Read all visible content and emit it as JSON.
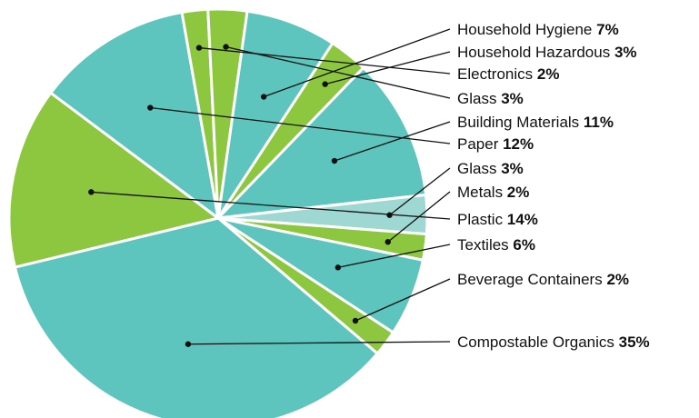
{
  "chart_data": {
    "type": "pie",
    "title": "",
    "legend": "none",
    "slices": [
      {
        "label": "Household Hygiene",
        "value": 7,
        "pct_label": "7%",
        "color": "#5ec4be"
      },
      {
        "label": "Household Hazardous",
        "value": 3,
        "pct_label": "3%",
        "color": "#8dc63f"
      },
      {
        "label": "Building Materials",
        "value": 11,
        "pct_label": "11%",
        "color": "#5ec4be"
      },
      {
        "label": "Glass",
        "value": 3,
        "pct_label": "3%",
        "color": "#9fd8d3"
      },
      {
        "label": "Metals",
        "value": 2,
        "pct_label": "2%",
        "color": "#8dc63f"
      },
      {
        "label": "Textiles",
        "value": 6,
        "pct_label": "6%",
        "color": "#5ec4be"
      },
      {
        "label": "Beverage Containers",
        "value": 2,
        "pct_label": "2%",
        "color": "#8dc63f"
      },
      {
        "label": "Compostable Organics",
        "value": 35,
        "pct_label": "35%",
        "color": "#5ec4be"
      },
      {
        "label": "Plastic",
        "value": 14,
        "pct_label": "14%",
        "color": "#8dc63f"
      },
      {
        "label": "Paper",
        "value": 12,
        "pct_label": "12%",
        "color": "#5ec4be"
      },
      {
        "label": "Electronics",
        "value": 2,
        "pct_label": "2%",
        "color": "#8dc63f"
      },
      {
        "label": "Glass",
        "value": 3,
        "pct_label": "3%",
        "color": "#8dc63f"
      }
    ],
    "label_order": [
      0,
      1,
      10,
      11,
      2,
      9,
      3,
      4,
      8,
      5,
      6,
      7
    ]
  }
}
